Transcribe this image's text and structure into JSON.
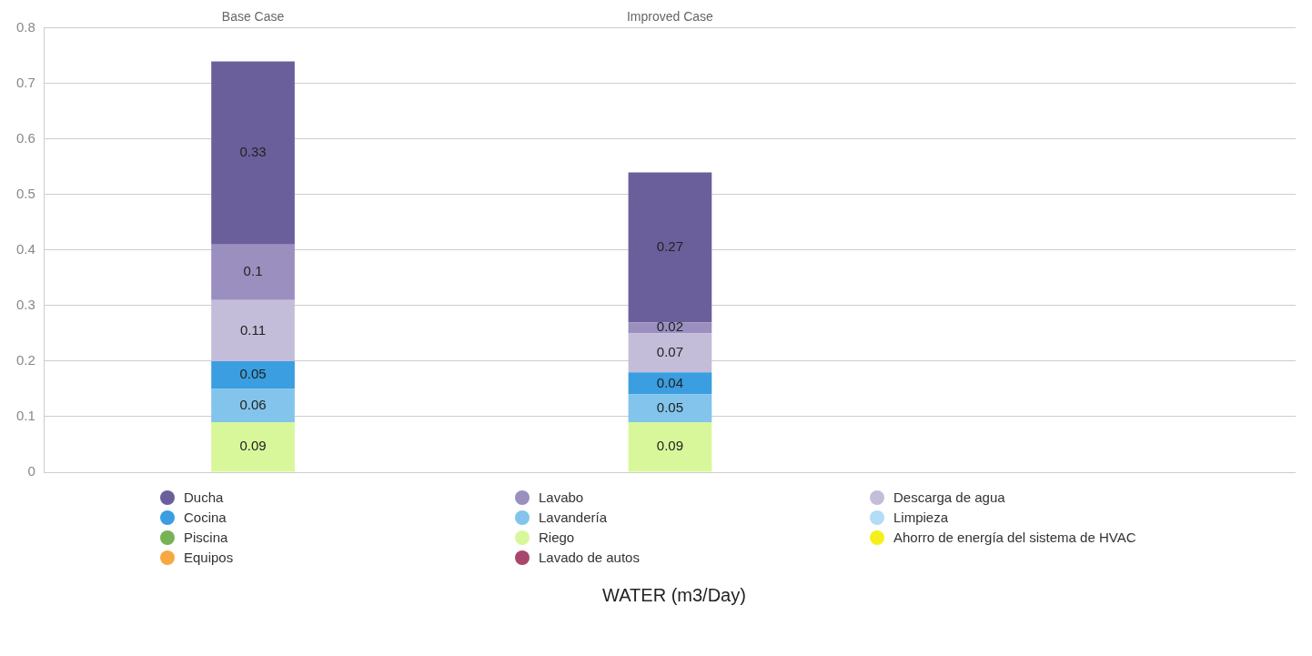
{
  "chart_data": {
    "type": "bar",
    "stacked": true,
    "annotations": [
      "WATER (m3/Day)"
    ],
    "categories": [
      "Base Case",
      "Improved Case",
      null
    ],
    "series": [
      {
        "name": "Lavado de autos",
        "color": "#a8476b",
        "values": [
          null,
          null,
          null
        ]
      },
      {
        "name": "Equipos",
        "color": "#f7a941",
        "values": [
          null,
          null,
          null
        ]
      },
      {
        "name": "Ahorro de energía del sistema de HVAC",
        "color": "#f5f01a",
        "values": [
          null,
          null,
          null
        ]
      },
      {
        "name": "Riego",
        "color": "#d8f79b",
        "values": [
          0.09,
          0.09,
          null
        ]
      },
      {
        "name": "Piscina",
        "color": "#77b255",
        "values": [
          null,
          null,
          null
        ]
      },
      {
        "name": "Limpieza",
        "color": "#b3dcf5",
        "values": [
          null,
          null,
          null
        ]
      },
      {
        "name": "Lavandería",
        "color": "#82c4ec",
        "values": [
          0.06,
          0.05,
          null
        ]
      },
      {
        "name": "Cocina",
        "color": "#3a9ee0",
        "values": [
          0.05,
          0.04,
          null
        ]
      },
      {
        "name": "Descarga de agua",
        "color": "#c4bdd9",
        "values": [
          0.11,
          0.07,
          null
        ]
      },
      {
        "name": "Lavabo",
        "color": "#9a8fbf",
        "values": [
          0.1,
          0.02,
          null
        ]
      },
      {
        "name": "Ducha",
        "color": "#6b5f9b",
        "values": [
          0.33,
          0.27,
          null
        ]
      }
    ],
    "ylim": [
      0,
      0.8
    ],
    "yticks": [
      0,
      0.1,
      0.2,
      0.3,
      0.4,
      0.5,
      0.6,
      0.7,
      0.8
    ],
    "grid": "y",
    "legend": "bottom",
    "data_labels": true
  }
}
